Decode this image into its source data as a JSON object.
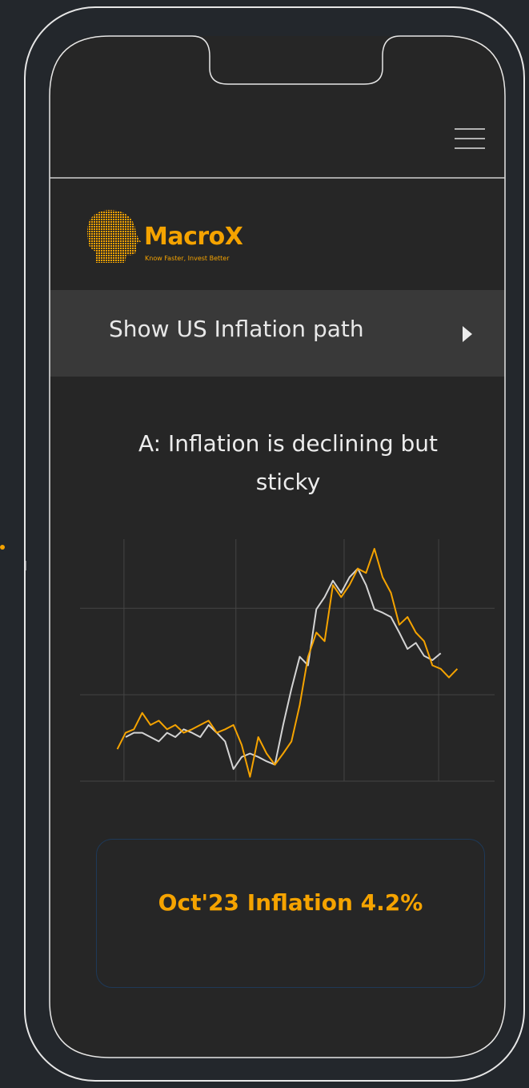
{
  "brand": {
    "name": "Macro",
    "name_accent": "X",
    "tagline": "Know Faster, Invest Better"
  },
  "menu_button": "Show US Inflation path",
  "summary": "Oct'23 Inflation 4.2%",
  "chart_data": {
    "type": "line",
    "title": "A: Inflation is declining but sticky",
    "x": [
      9,
      11,
      13,
      15,
      17,
      19,
      21,
      23,
      25,
      27,
      29,
      31,
      33,
      35,
      37,
      39,
      41,
      43,
      45,
      47,
      49,
      51,
      53,
      55,
      57,
      59,
      61,
      63,
      65,
      67,
      69,
      71,
      73,
      75,
      77,
      79,
      81,
      83,
      85,
      87,
      89,
      91
    ],
    "xlim": [
      0,
      100
    ],
    "xticks": [
      10.6,
      37.6,
      63.7,
      86.5
    ],
    "ylim": [
      0,
      2.8
    ],
    "yticks": [
      0,
      1,
      2
    ],
    "grid": true,
    "series": [
      {
        "color": "#d4d4d4",
        "values": [
          null,
          0.51,
          0.56,
          0.56,
          0.51,
          0.46,
          0.56,
          0.51,
          0.6,
          0.56,
          0.51,
          0.65,
          0.56,
          0.46,
          0.14,
          0.28,
          0.32,
          0.28,
          0.23,
          0.19,
          0.65,
          1.07,
          1.44,
          1.34,
          1.99,
          2.13,
          2.32,
          2.18,
          2.36,
          2.46,
          2.27,
          1.99,
          1.95,
          1.9,
          1.72,
          1.53,
          1.6,
          1.45,
          1.4,
          1.48,
          null,
          null
        ]
      },
      {
        "color": "#f5a300",
        "values": [
          0.37,
          0.56,
          0.6,
          0.79,
          0.65,
          0.7,
          0.6,
          0.65,
          0.56,
          0.6,
          0.65,
          0.7,
          0.56,
          0.6,
          0.65,
          0.42,
          0.05,
          0.51,
          0.32,
          0.19,
          0.32,
          0.46,
          0.88,
          1.44,
          1.72,
          1.62,
          2.27,
          2.13,
          2.27,
          2.46,
          2.41,
          2.69,
          2.36,
          2.18,
          1.81,
          1.9,
          1.72,
          1.62,
          1.34,
          1.3,
          1.2,
          1.3
        ]
      }
    ]
  }
}
